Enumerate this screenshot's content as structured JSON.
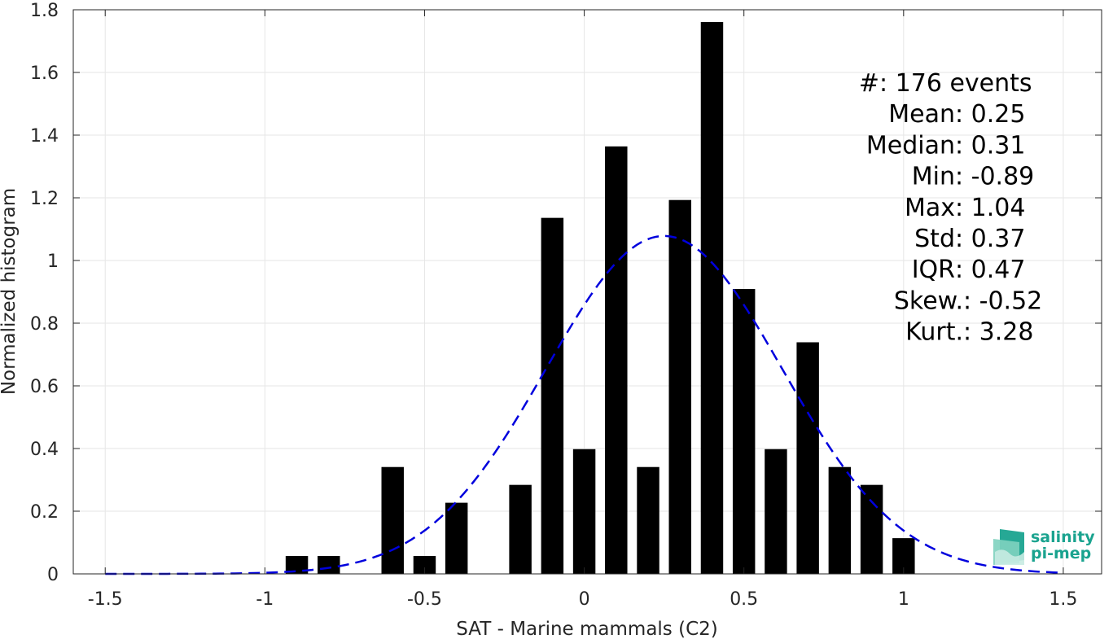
{
  "chart_data": {
    "type": "bar",
    "xlabel": "SAT - Marine mammals (C2)",
    "ylabel": "Normalized histogram",
    "xlim": [
      -1.6,
      1.62
    ],
    "ylim": [
      0,
      1.8
    ],
    "grid": true,
    "x_ticks": [
      -1.5,
      -1,
      -0.5,
      0,
      0.5,
      1,
      1.5
    ],
    "x_tick_labels": [
      "-1.5",
      "-1",
      "-0.5",
      "0",
      "0.5",
      "1",
      "1.5"
    ],
    "y_ticks": [
      0,
      0.2,
      0.4,
      0.6,
      0.8,
      1,
      1.2,
      1.4,
      1.6,
      1.8
    ],
    "y_tick_labels": [
      "0",
      "0.2",
      "0.4",
      "0.6",
      "0.8",
      "1",
      "1.2",
      "1.4",
      "1.6",
      "1.8"
    ],
    "bar_width": 0.07,
    "bars": [
      {
        "x": -0.9,
        "y": 0.057
      },
      {
        "x": -0.8,
        "y": 0.057
      },
      {
        "x": -0.6,
        "y": 0.341
      },
      {
        "x": -0.5,
        "y": 0.057
      },
      {
        "x": -0.4,
        "y": 0.227
      },
      {
        "x": -0.2,
        "y": 0.284
      },
      {
        "x": -0.1,
        "y": 1.136
      },
      {
        "x": 0.0,
        "y": 0.398
      },
      {
        "x": 0.1,
        "y": 1.364
      },
      {
        "x": 0.2,
        "y": 0.341
      },
      {
        "x": 0.3,
        "y": 1.193
      },
      {
        "x": 0.4,
        "y": 1.761
      },
      {
        "x": 0.5,
        "y": 0.909
      },
      {
        "x": 0.6,
        "y": 0.398
      },
      {
        "x": 0.7,
        "y": 0.739
      },
      {
        "x": 0.8,
        "y": 0.341
      },
      {
        "x": 0.9,
        "y": 0.284
      },
      {
        "x": 1.0,
        "y": 0.114
      }
    ],
    "fit_curve": {
      "style": "dashed",
      "color": "#0000dd",
      "mean": 0.25,
      "std": 0.37,
      "x_range": [
        -1.5,
        1.5
      ]
    },
    "bar_color": "#000000",
    "stats_lines": [
      {
        "label": "#  ",
        "value": ": 176 events"
      },
      {
        "label": "Mean ",
        "value": ": 0.25"
      },
      {
        "label": "Median ",
        "value": ": 0.31"
      },
      {
        "label": "Min ",
        "value": ": -0.89"
      },
      {
        "label": "Max ",
        "value": ": 1.04"
      },
      {
        "label": "Std ",
        "value": ": 0.37"
      },
      {
        "label": "IQR ",
        "value": ": 0.47"
      },
      {
        "label": "Skew. ",
        "value": ": -0.52"
      },
      {
        "label": "Kurt. ",
        "value": ": 3.28"
      }
    ]
  },
  "logo": {
    "line1": "salinity",
    "line2": "pi-mep",
    "color": "#1aa38f"
  }
}
